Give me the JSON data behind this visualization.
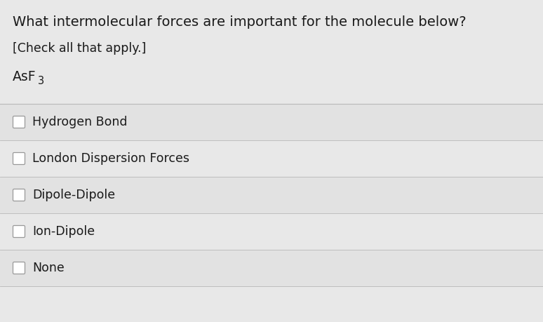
{
  "title": "What intermolecular forces are important for the molecule below?",
  "subtitle": "[Check all that apply.]",
  "molecule": "AsF",
  "molecule_subscript": "3",
  "options": [
    "Hydrogen Bond",
    "London Dispersion Forces",
    "Dipole-Dipole",
    "Ion-Dipole",
    "None"
  ],
  "background_color": "#e8e8e8",
  "row_bg_even": "#e2e2e2",
  "row_bg_odd": "#e8e8e8",
  "title_fontsize": 14,
  "subtitle_fontsize": 12.5,
  "molecule_fontsize": 13.5,
  "option_fontsize": 12.5,
  "divider_color": "#b8b8b8",
  "text_color": "#1a1a1a",
  "title_weight": "normal"
}
